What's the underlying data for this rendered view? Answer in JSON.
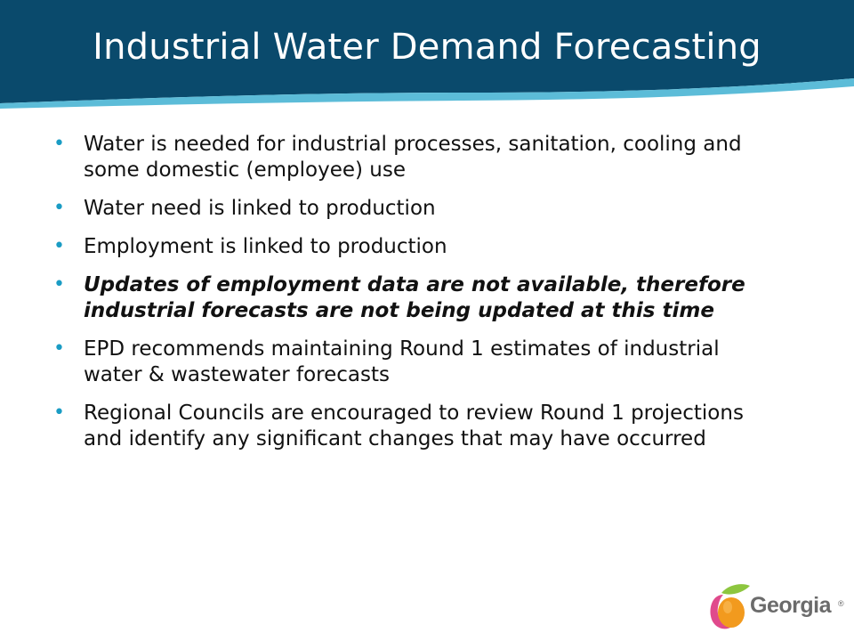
{
  "slide": {
    "title": "Industrial Water Demand Forecasting",
    "bullets": [
      {
        "text": "Water is needed for industrial processes, sanitation, cooling and some domestic (employee) use",
        "emphasis": false
      },
      {
        "text": "Water need is linked to production",
        "emphasis": false
      },
      {
        "text": "Employment is linked to production",
        "emphasis": false
      },
      {
        "text": "Updates of employment data are not available, therefore industrial forecasts are not being updated at this time",
        "emphasis": true
      },
      {
        "text": "EPD recommends maintaining Round 1 estimates of industrial water & wastewater forecasts",
        "emphasis": false
      },
      {
        "text": "Regional Councils are encouraged to review Round 1 projections and identify any significant changes that may have occurred",
        "emphasis": false
      }
    ],
    "bullet_glyph": "•"
  },
  "logo": {
    "word": "Georgia",
    "registered_mark": "®",
    "icon": "peach-icon"
  },
  "colors": {
    "header_dark": "#0a4a6c",
    "header_light": "#5cbcd8",
    "bullet": "#1a9cc4",
    "text": "#111111",
    "peach_orange": "#f29a1e",
    "peach_pink": "#e04a8c",
    "leaf_green": "#8dc63f"
  }
}
